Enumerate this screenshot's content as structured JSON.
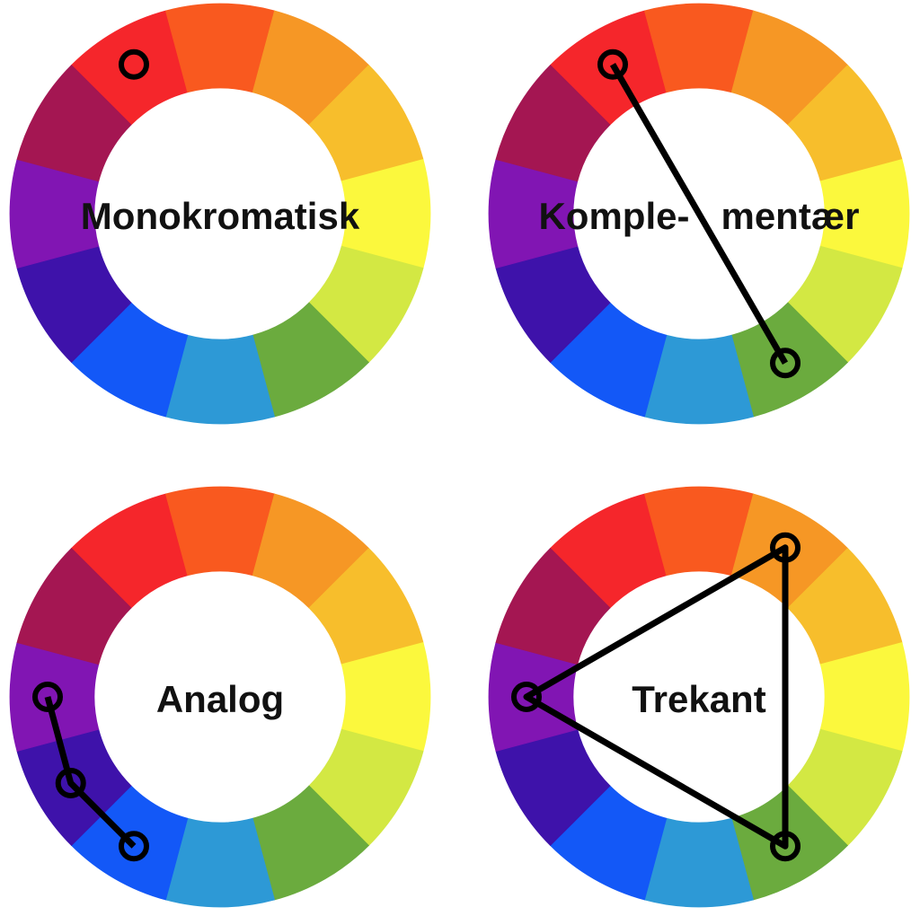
{
  "palette": [
    "#f5262b",
    "#f9591f",
    "#f69725",
    "#f7be2c",
    "#fbf83d",
    "#d3e843",
    "#6bab3e",
    "#2d99d6",
    "#1358f7",
    "#3e12aa",
    "#8115b3",
    "#a41652"
  ],
  "wheels": [
    {
      "label": "Monokromatisk",
      "selected_segments": [
        0
      ],
      "connector": "none"
    },
    {
      "label": "Komple-   mentær",
      "selected_segments": [
        0,
        6
      ],
      "connector": "line"
    },
    {
      "label": "Analog",
      "selected_segments": [
        10,
        9,
        8
      ],
      "connector": "path"
    },
    {
      "label": "Trekant",
      "selected_segments": [
        2,
        6,
        10
      ],
      "connector": "triangle"
    }
  ]
}
